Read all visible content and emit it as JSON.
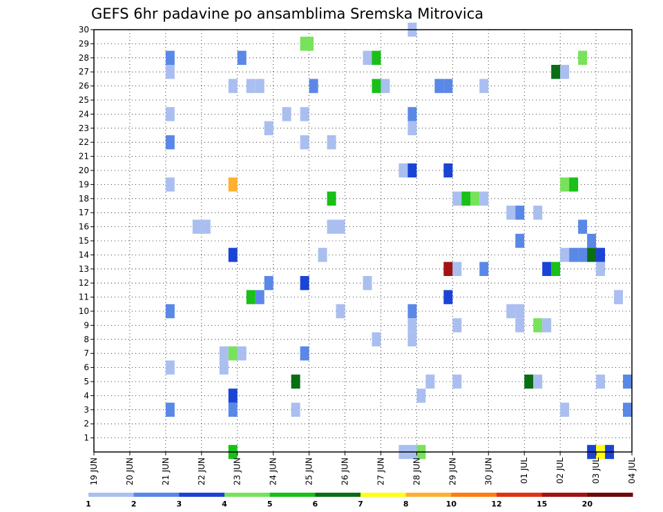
{
  "chart_data": {
    "type": "heatmap",
    "title": "GEFS 6hr padavine po ansamblima Sremska Mitrovica",
    "xlabel": "",
    "ylabel": "",
    "x_ticks": [
      "19 JUN",
      "20 JUN",
      "21 JUN",
      "22 JUN",
      "23 JUN",
      "24 JUN",
      "25 JUN",
      "26 JUN",
      "27 JUN",
      "28 JUN",
      "29 JUN",
      "30 JUN",
      "01 JUL",
      "02 JUL",
      "03 JUL",
      "04 JUL"
    ],
    "x_range_days": [
      0,
      15
    ],
    "y_ticks": [
      "1",
      "2",
      "3",
      "4",
      "5",
      "6",
      "7",
      "8",
      "9",
      "10",
      "11",
      "12",
      "13",
      "14",
      "15",
      "16",
      "17",
      "18",
      "19",
      "20",
      "21",
      "22",
      "23",
      "24",
      "25",
      "26",
      "27",
      "28",
      "29",
      "30"
    ],
    "ylim": [
      0,
      30
    ],
    "grid": true,
    "colorbar": {
      "labels": [
        "1",
        "2",
        "3",
        "4",
        "5",
        "6",
        "7",
        "8",
        "10",
        "12",
        "15",
        "20"
      ],
      "colors": [
        "#aabff0",
        "#5a88e6",
        "#1a44d6",
        "#78e25a",
        "#18c018",
        "#0a6e14",
        "#ffff14",
        "#ffb030",
        "#ff7c12",
        "#e03214",
        "#a01414",
        "#6e0a0a"
      ]
    },
    "cells": [
      {
        "day": 8.875,
        "member": 30,
        "level": 1
      },
      {
        "day": 5.875,
        "member": 29,
        "level": 4
      },
      {
        "day": 6,
        "member": 29,
        "level": 4
      },
      {
        "day": 2.125,
        "member": 28,
        "level": 2
      },
      {
        "day": 4.125,
        "member": 28,
        "level": 2
      },
      {
        "day": 7.625,
        "member": 28,
        "level": 1
      },
      {
        "day": 7.875,
        "member": 28,
        "level": 5
      },
      {
        "day": 13.625,
        "member": 28,
        "level": 4
      },
      {
        "day": 2.125,
        "member": 27,
        "level": 1
      },
      {
        "day": 12.875,
        "member": 27,
        "level": 6
      },
      {
        "day": 13.125,
        "member": 27,
        "level": 1
      },
      {
        "day": 3.875,
        "member": 26,
        "level": 1
      },
      {
        "day": 4.375,
        "member": 26,
        "level": 1
      },
      {
        "day": 4.625,
        "member": 26,
        "level": 1
      },
      {
        "day": 6.125,
        "member": 26,
        "level": 2
      },
      {
        "day": 7.875,
        "member": 26,
        "level": 5
      },
      {
        "day": 8.125,
        "member": 26,
        "level": 1
      },
      {
        "day": 9.625,
        "member": 26,
        "level": 2
      },
      {
        "day": 9.875,
        "member": 26,
        "level": 2
      },
      {
        "day": 10.875,
        "member": 26,
        "level": 1
      },
      {
        "day": 2.125,
        "member": 24,
        "level": 1
      },
      {
        "day": 5.375,
        "member": 24,
        "level": 1
      },
      {
        "day": 5.875,
        "member": 24,
        "level": 1
      },
      {
        "day": 8.875,
        "member": 24,
        "level": 2
      },
      {
        "day": 4.875,
        "member": 23,
        "level": 1
      },
      {
        "day": 8.875,
        "member": 23,
        "level": 1
      },
      {
        "day": 2.125,
        "member": 22,
        "level": 2
      },
      {
        "day": 5.875,
        "member": 22,
        "level": 1
      },
      {
        "day": 6.625,
        "member": 22,
        "level": 1
      },
      {
        "day": 8.625,
        "member": 20,
        "level": 1
      },
      {
        "day": 8.875,
        "member": 20,
        "level": 3
      },
      {
        "day": 9.875,
        "member": 20,
        "level": 3
      },
      {
        "day": 2.125,
        "member": 19,
        "level": 1
      },
      {
        "day": 3.875,
        "member": 19,
        "level": 8
      },
      {
        "day": 13.125,
        "member": 19,
        "level": 4
      },
      {
        "day": 13.375,
        "member": 19,
        "level": 5
      },
      {
        "day": 6.625,
        "member": 18,
        "level": 5
      },
      {
        "day": 10.125,
        "member": 18,
        "level": 1
      },
      {
        "day": 10.375,
        "member": 18,
        "level": 5
      },
      {
        "day": 10.625,
        "member": 18,
        "level": 4
      },
      {
        "day": 10.875,
        "member": 18,
        "level": 1
      },
      {
        "day": 11.625,
        "member": 17,
        "level": 1
      },
      {
        "day": 11.875,
        "member": 17,
        "level": 2
      },
      {
        "day": 12.375,
        "member": 17,
        "level": 1
      },
      {
        "day": 2.875,
        "member": 16,
        "level": 1
      },
      {
        "day": 3.125,
        "member": 16,
        "level": 1
      },
      {
        "day": 6.625,
        "member": 16,
        "level": 1
      },
      {
        "day": 6.875,
        "member": 16,
        "level": 1
      },
      {
        "day": 13.625,
        "member": 16,
        "level": 2
      },
      {
        "day": 11.875,
        "member": 15,
        "level": 2
      },
      {
        "day": 13.875,
        "member": 15,
        "level": 2
      },
      {
        "day": 3.875,
        "member": 14,
        "level": 3
      },
      {
        "day": 6.375,
        "member": 14,
        "level": 1
      },
      {
        "day": 13.125,
        "member": 14,
        "level": 1
      },
      {
        "day": 13.375,
        "member": 14,
        "level": 2
      },
      {
        "day": 13.625,
        "member": 14,
        "level": 2
      },
      {
        "day": 13.875,
        "member": 14,
        "level": 6
      },
      {
        "day": 14.125,
        "member": 14,
        "level": 3
      },
      {
        "day": 9.875,
        "member": 13,
        "level": 11
      },
      {
        "day": 10.125,
        "member": 13,
        "level": 1
      },
      {
        "day": 10.875,
        "member": 13,
        "level": 2
      },
      {
        "day": 12.625,
        "member": 13,
        "level": 3
      },
      {
        "day": 12.875,
        "member": 13,
        "level": 5
      },
      {
        "day": 14.125,
        "member": 13,
        "level": 1
      },
      {
        "day": 4.875,
        "member": 12,
        "level": 2
      },
      {
        "day": 5.875,
        "member": 12,
        "level": 3
      },
      {
        "day": 7.625,
        "member": 12,
        "level": 1
      },
      {
        "day": 4.375,
        "member": 11,
        "level": 5
      },
      {
        "day": 4.625,
        "member": 11,
        "level": 2
      },
      {
        "day": 9.875,
        "member": 11,
        "level": 3
      },
      {
        "day": 14.625,
        "member": 11,
        "level": 1
      },
      {
        "day": 2.125,
        "member": 10,
        "level": 2
      },
      {
        "day": 6.875,
        "member": 10,
        "level": 1
      },
      {
        "day": 8.875,
        "member": 10,
        "level": 2
      },
      {
        "day": 11.625,
        "member": 10,
        "level": 1
      },
      {
        "day": 11.875,
        "member": 10,
        "level": 1
      },
      {
        "day": 8.875,
        "member": 9,
        "level": 1
      },
      {
        "day": 10.125,
        "member": 9,
        "level": 1
      },
      {
        "day": 11.875,
        "member": 9,
        "level": 1
      },
      {
        "day": 12.375,
        "member": 9,
        "level": 4
      },
      {
        "day": 12.625,
        "member": 9,
        "level": 1
      },
      {
        "day": 7.875,
        "member": 8,
        "level": 1
      },
      {
        "day": 8.875,
        "member": 8,
        "level": 1
      },
      {
        "day": 3.625,
        "member": 7,
        "level": 1
      },
      {
        "day": 3.875,
        "member": 7,
        "level": 4
      },
      {
        "day": 4.125,
        "member": 7,
        "level": 1
      },
      {
        "day": 5.875,
        "member": 7,
        "level": 2
      },
      {
        "day": 2.125,
        "member": 6,
        "level": 1
      },
      {
        "day": 3.625,
        "member": 6,
        "level": 1
      },
      {
        "day": 5.625,
        "member": 5,
        "level": 6
      },
      {
        "day": 9.375,
        "member": 5,
        "level": 1
      },
      {
        "day": 10.125,
        "member": 5,
        "level": 1
      },
      {
        "day": 12.125,
        "member": 5,
        "level": 6
      },
      {
        "day": 12.375,
        "member": 5,
        "level": 1
      },
      {
        "day": 14.125,
        "member": 5,
        "level": 1
      },
      {
        "day": 14.875,
        "member": 5,
        "level": 2
      },
      {
        "day": 3.875,
        "member": 4,
        "level": 3
      },
      {
        "day": 9.125,
        "member": 4,
        "level": 1
      },
      {
        "day": 2.125,
        "member": 3,
        "level": 2
      },
      {
        "day": 3.875,
        "member": 3,
        "level": 2
      },
      {
        "day": 5.625,
        "member": 3,
        "level": 1
      },
      {
        "day": 13.125,
        "member": 3,
        "level": 1
      },
      {
        "day": 14.875,
        "member": 3,
        "level": 2
      },
      {
        "day": 3.875,
        "member": 0,
        "level": 5
      },
      {
        "day": 8.625,
        "member": 0,
        "level": 1
      },
      {
        "day": 8.875,
        "member": 0,
        "level": 1
      },
      {
        "day": 9.125,
        "member": 0,
        "level": 4
      },
      {
        "day": 13.875,
        "member": 0,
        "level": 3
      },
      {
        "day": 14.125,
        "member": 0,
        "level": 7
      },
      {
        "day": 14.375,
        "member": 0,
        "level": 3
      }
    ]
  }
}
